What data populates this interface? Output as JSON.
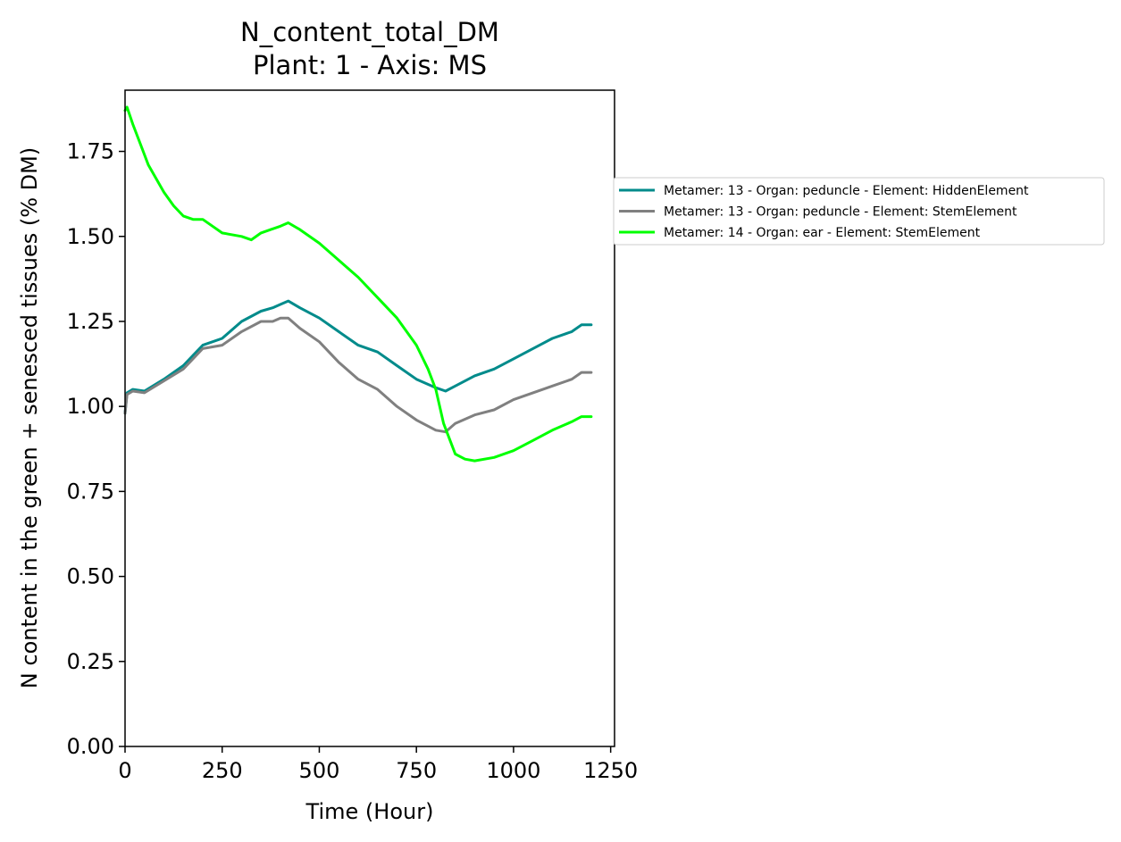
{
  "chart_data": {
    "type": "line",
    "title": "N_content_total_DM",
    "subtitle": "Plant: 1 - Axis: MS",
    "xlabel": "Time (Hour)",
    "ylabel": "N content in the green + senesced tissues (% DM)",
    "xlim": [
      0,
      1260
    ],
    "ylim": [
      0,
      1.93
    ],
    "xticks": [
      0,
      250,
      500,
      750,
      1000,
      1250
    ],
    "xtick_labels": [
      "0",
      "250",
      "500",
      "750",
      "1000",
      "1250"
    ],
    "yticks": [
      0,
      0.25,
      0.5,
      0.75,
      1.0,
      1.25,
      1.5,
      1.75
    ],
    "ytick_labels": [
      "0.00",
      "0.25",
      "0.50",
      "0.75",
      "1.00",
      "1.25",
      "1.50",
      "1.75"
    ],
    "grid": false,
    "legend_position": "outside right, upper",
    "series": [
      {
        "name": "Metamer: 13 - Organ: peduncle - Element: HiddenElement",
        "color": "#008b8b",
        "x": [
          0,
          5,
          20,
          50,
          100,
          150,
          175,
          200,
          250,
          300,
          350,
          380,
          400,
          420,
          450,
          500,
          550,
          600,
          650,
          700,
          750,
          800,
          825,
          850,
          900,
          950,
          1000,
          1050,
          1100,
          1150,
          1175,
          1200
        ],
        "y": [
          0.98,
          1.04,
          1.05,
          1.045,
          1.08,
          1.12,
          1.15,
          1.18,
          1.2,
          1.25,
          1.28,
          1.29,
          1.3,
          1.31,
          1.29,
          1.26,
          1.22,
          1.18,
          1.16,
          1.12,
          1.08,
          1.055,
          1.045,
          1.06,
          1.09,
          1.11,
          1.14,
          1.17,
          1.2,
          1.22,
          1.24,
          1.24
        ]
      },
      {
        "name": "Metamer: 13 - Organ: peduncle - Element: StemElement",
        "color": "#808080",
        "x": [
          0,
          5,
          20,
          50,
          100,
          150,
          175,
          200,
          250,
          300,
          350,
          380,
          400,
          420,
          450,
          500,
          550,
          600,
          650,
          700,
          750,
          800,
          825,
          850,
          900,
          950,
          1000,
          1050,
          1100,
          1150,
          1175,
          1200
        ],
        "y": [
          0.98,
          1.035,
          1.045,
          1.04,
          1.075,
          1.11,
          1.14,
          1.17,
          1.18,
          1.22,
          1.25,
          1.25,
          1.26,
          1.26,
          1.23,
          1.19,
          1.13,
          1.08,
          1.05,
          1.0,
          0.96,
          0.93,
          0.925,
          0.95,
          0.975,
          0.99,
          1.02,
          1.04,
          1.06,
          1.08,
          1.1,
          1.1
        ]
      },
      {
        "name": "Metamer: 14 - Organ: ear - Element: StemElement",
        "color": "#00ff00",
        "x": [
          0,
          5,
          20,
          40,
          60,
          80,
          100,
          125,
          150,
          175,
          200,
          225,
          250,
          300,
          325,
          350,
          375,
          400,
          420,
          450,
          500,
          550,
          600,
          650,
          700,
          750,
          780,
          800,
          820,
          850,
          875,
          900,
          950,
          1000,
          1050,
          1100,
          1150,
          1175,
          1200
        ],
        "y": [
          1.87,
          1.88,
          1.83,
          1.77,
          1.71,
          1.67,
          1.63,
          1.59,
          1.56,
          1.55,
          1.55,
          1.53,
          1.51,
          1.5,
          1.49,
          1.51,
          1.52,
          1.53,
          1.54,
          1.52,
          1.48,
          1.43,
          1.38,
          1.32,
          1.26,
          1.18,
          1.11,
          1.05,
          0.95,
          0.86,
          0.845,
          0.84,
          0.85,
          0.87,
          0.9,
          0.93,
          0.955,
          0.97,
          0.97
        ]
      }
    ]
  }
}
